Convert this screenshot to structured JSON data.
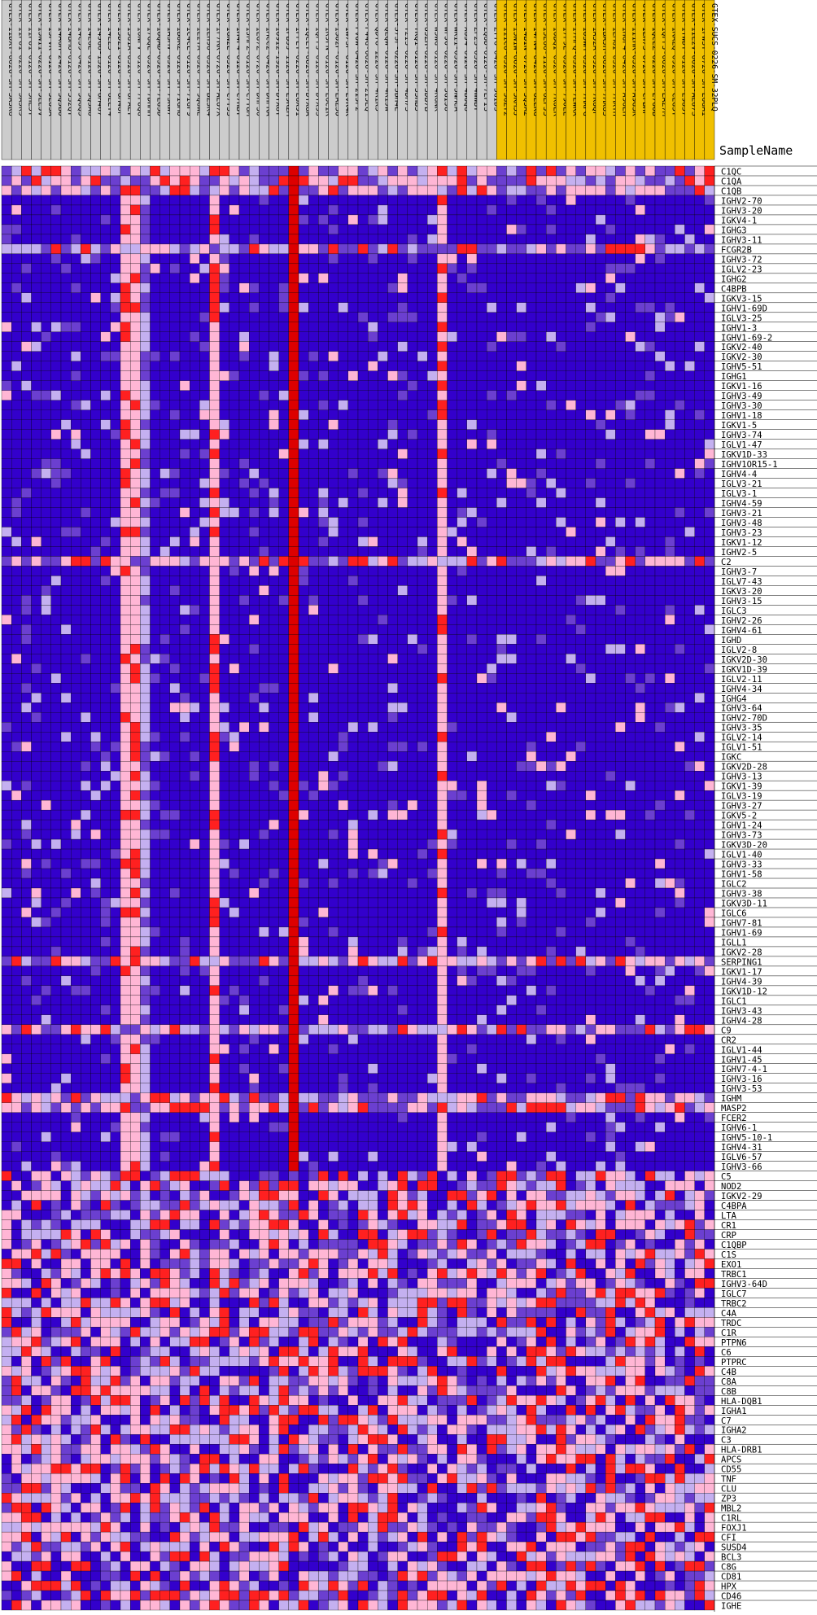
{
  "chart_data": {
    "type": "heatmap",
    "column_header_label": "SampleName",
    "colors": {
      "low": "#3300cc",
      "mid": "#6b3fd0",
      "light": "#c4b0f0",
      "pink": "#ffb6d5",
      "high": "#ff2020",
      "max": "#dd0000",
      "header_gray": "#cccccc",
      "header_gold": "#f0c000",
      "grid": "#000000"
    },
    "samples": [
      {
        "name": "GTEX-11DXY-0626-SM-5A5K6",
        "group": "gray"
      },
      {
        "name": "GTEX-11P81-0226-SM-5A5K9",
        "group": "gray"
      },
      {
        "name": "GTEX-11P81-0126-SM-5HL5Y",
        "group": "gray"
      },
      {
        "name": "GTEX-13N11-0226-SM-5LEJV",
        "group": "gray"
      },
      {
        "name": "GTEX-13PVR-0126-SM-5LU3A",
        "group": "gray"
      },
      {
        "name": "GTEX-14A6H-2426-SM-5Q5BO",
        "group": "gray"
      },
      {
        "name": "GTEX-14BMU-0126-SM-5S2QT",
        "group": "gray"
      },
      {
        "name": "GTEX-14C39-0426-SM-5QGQ3",
        "group": "gray"
      },
      {
        "name": "GTEX-14E6E-0126-SM-5Q5AO",
        "group": "gray"
      },
      {
        "name": "GTEX-14JG6-1326-SM-6M467",
        "group": "gray"
      },
      {
        "name": "GTEX-14LZ3-0126-SM-6LLT4",
        "group": "gray"
      },
      {
        "name": "GTEX-15DZ1-0126-SM-6M46F",
        "group": "gray"
      },
      {
        "name": "GTEX-15G1A-0326-SM-6PALY",
        "group": "gray"
      },
      {
        "name": "GTEX-16NPV-0126-SM-7P8QG",
        "group": "gray"
      },
      {
        "name": "GTEX-17GQL-0326-SM-7DHMH",
        "group": "gray"
      },
      {
        "name": "GTEX-18QAD-0326-SM-7LG5D",
        "group": "gray"
      },
      {
        "name": "GTEX-1A3MV-0326-SM-73KW7",
        "group": "gray"
      },
      {
        "name": "GTEX-1B8KZ-0126-SM-7IGM8",
        "group": "gray"
      },
      {
        "name": "GTEX-1C4CL-0126-SM-7IGP9",
        "group": "gray"
      },
      {
        "name": "GTEX-1E2YA-0326-SM-9QGWE",
        "group": "gray"
      },
      {
        "name": "GTEX-1EH9U-0326-SM-BZ3K4",
        "group": "gray"
      },
      {
        "name": "GTEX-1F7RK-0726-SM-AEU7X",
        "group": "gray"
      },
      {
        "name": "GTEX-1GN2E-0326-SM-C7Y3S",
        "group": "gray"
      },
      {
        "name": "GTEX-1H4P4-0126-SM-C7HBY",
        "group": "gray"
      },
      {
        "name": "GTEX-1JMPZ-0126-SM-C7Y8M",
        "group": "gray"
      },
      {
        "name": "GTEX-1LG7Z-0726-SM-DHF30",
        "group": "gray"
      },
      {
        "name": "GTEX-1MCC2-0426-SM-DHFRA",
        "group": "gray"
      },
      {
        "name": "GTEX-1O9I2-1926-SM-DTX8T",
        "group": "gray"
      },
      {
        "name": "GTEX-1PBJJ-1126-SM-E9R2M",
        "group": "gray"
      },
      {
        "name": "GTEX-1PFEY-0226-SM-E6X91",
        "group": "gray"
      },
      {
        "name": "GTEX-1QCLY-0826-SM-DTX8A",
        "group": "gray"
      },
      {
        "name": "GTEX-1QPFJ-0126-SM-DTX9S",
        "group": "gray"
      },
      {
        "name": "GTEX-1R9PN-0126-SM-E6CIR",
        "group": "gray"
      },
      {
        "name": "GTEX-1S82P-0126-SM-EAZ3U",
        "group": "gray"
      },
      {
        "name": "GTEX-1W7SF-0126-SM-EVR4K",
        "group": "gray"
      },
      {
        "name": "GTEX-PVOW-0426-SM-2I5F2",
        "group": "gray"
      },
      {
        "name": "GTEX-P44G-0626-SM-2I5EQ",
        "group": "gray"
      },
      {
        "name": "GTEX-QDT8-1226-SM-4R1K5",
        "group": "gray"
      },
      {
        "name": "GTEX-QLQW-0126-SM-4R1JW",
        "group": "gray"
      },
      {
        "name": "GTEX-S7SF-0226-SM-3BH4E",
        "group": "gray"
      },
      {
        "name": "GTEX-T2IS-0226-SM-4DM7S",
        "group": "gray"
      },
      {
        "name": "GTEX-TKQ1-0126-SM-33HB3",
        "group": "gray"
      },
      {
        "name": "GTEX-U3ZH-0226-SM-3DB7B",
        "group": "gray"
      },
      {
        "name": "GTEX-W5WG-0126-SM-4RGNK",
        "group": "gray"
      },
      {
        "name": "GTEX-WFJO-0226-SM-3GIJ8",
        "group": "gray"
      },
      {
        "name": "GTEX-WK11-0326-SM-3NMCA",
        "group": "gray"
      },
      {
        "name": "GTEX-XUJ4-0126-SM-4BOQ6",
        "group": "gray"
      },
      {
        "name": "GTEX-ZF2S-0326-SM-4WWBY",
        "group": "gray"
      },
      {
        "name": "GTEX-ZQUD-0126-SM-7EPIS",
        "group": "gray"
      },
      {
        "name": "GTEX-ZYT6-0426-SM-5GID3",
        "group": "gray"
      },
      {
        "name": "GTEX-111CU-0326-SM-5GZY2",
        "group": "gold"
      },
      {
        "name": "GTEX-13N1W-0826-SM-5KM5J",
        "group": "gold"
      },
      {
        "name": "GTEX-14BIN-0726-SM-5Q5A2",
        "group": "gold"
      },
      {
        "name": "GTEX-14PN4-0426-SM-6LLKG",
        "group": "gold"
      },
      {
        "name": "GTEX-15EU6-1126-SM-6LPJ3",
        "group": "gold"
      },
      {
        "name": "GTEX-16BQI-0326-SM-7KUER",
        "group": "gold"
      },
      {
        "name": "GTEX-17F9E-0526-SM-79OLE",
        "group": "gold"
      },
      {
        "name": "GTEX-17MFQ-0326-SM-7EWKX",
        "group": "gold"
      },
      {
        "name": "GTEX-183WM-0326-SM-7MXPG",
        "group": "gold"
      },
      {
        "name": "GTEX-1A32A-0926-SM-7KUQF",
        "group": "gold"
      },
      {
        "name": "GTEX-1BAJH-0626-SM-7MXU3",
        "group": "gold"
      },
      {
        "name": "GTEX-1EMGI-0326-SM-7MXTH",
        "group": "gold"
      },
      {
        "name": "GTEX-1HGF4-0426-SM-A96EH",
        "group": "gold"
      },
      {
        "name": "GTEX-1I1HK-0326-SM-A9G3K",
        "group": "gold"
      },
      {
        "name": "GTEX-1LH75-0726-SM-CFBHF",
        "group": "gold"
      },
      {
        "name": "GTEX-1QCLZ-0226-SM-E76OB",
        "group": "gold"
      },
      {
        "name": "GTEX-1QPFJ-0626-SM-EAZ7M",
        "group": "gold"
      },
      {
        "name": "GTEX-1RAZQ-0926-SM-CEG5T",
        "group": "gold"
      },
      {
        "name": "GTEX-1TWDT-0126-SM-E9U57",
        "group": "gold"
      },
      {
        "name": "GTEX-1IL2V-0626-SM-AEU7S",
        "group": "gold"
      },
      {
        "name": "GTEX-1PWST-0726-SM-E6GA1",
        "group": "gold"
      },
      {
        "name": "GTEX-SUCS-0226-SM-32PLQ",
        "group": "gold"
      }
    ],
    "genes": [
      "C1QC",
      "C1QA",
      "C1QB",
      "IGHV2-70",
      "IGHV3-20",
      "IGKV4-1",
      "IGHG3",
      "IGHV3-11",
      "FCGR2B",
      "IGHV3-72",
      "IGLV2-23",
      "IGHG2",
      "C4BPB",
      "IGKV3-15",
      "IGHV1-69D",
      "IGLV3-25",
      "IGHV1-3",
      "IGHV1-69-2",
      "IGKV2-40",
      "IGKV2-30",
      "IGHV5-51",
      "IGHG1",
      "IGKV1-16",
      "IGHV3-49",
      "IGHV3-30",
      "IGHV1-18",
      "IGKV1-5",
      "IGHV3-74",
      "IGLV1-47",
      "IGKV1D-33",
      "IGHV1OR15-1",
      "IGHV4-4",
      "IGLV3-21",
      "IGLV3-1",
      "IGHV4-59",
      "IGHV3-21",
      "IGHV3-48",
      "IGHV3-23",
      "IGKV1-12",
      "IGHV2-5",
      "C2",
      "IGHV3-7",
      "IGLV7-43",
      "IGKV3-20",
      "IGHV3-15",
      "IGLC3",
      "IGHV2-26",
      "IGHV4-61",
      "IGHD",
      "IGLV2-8",
      "IGKV2D-30",
      "IGKV1D-39",
      "IGLV2-11",
      "IGHV4-34",
      "IGHG4",
      "IGHV3-64",
      "IGHV2-70D",
      "IGHV3-35",
      "IGLV2-14",
      "IGLV1-51",
      "IGKC",
      "IGKV2D-28",
      "IGHV3-13",
      "IGKV1-39",
      "IGLV3-19",
      "IGHV3-27",
      "IGKV5-2",
      "IGHV1-24",
      "IGHV3-73",
      "IGKV3D-20",
      "IGLV1-40",
      "IGHV3-33",
      "IGHV1-58",
      "IGLC2",
      "IGHV3-38",
      "IGKV3D-11",
      "IGLC6",
      "IGHV7-81",
      "IGHV1-69",
      "IGLL1",
      "IGKV2-28",
      "SERPING1",
      "IGKV1-17",
      "IGHV4-39",
      "IGKV1D-12",
      "IGLC1",
      "IGHV3-43",
      "IGHV4-28",
      "C9",
      "CR2",
      "IGLV1-44",
      "IGHV1-45",
      "IGHV7-4-1",
      "IGHV3-16",
      "IGHV3-53",
      "IGHM",
      "MASP2",
      "FCER2",
      "IGHV6-1",
      "IGHV5-10-1",
      "IGHV4-31",
      "IGLV6-57",
      "IGHV3-66",
      "C5",
      "NOD2",
      "IGKV2-29",
      "C4BPA",
      "LTA",
      "CR1",
      "CRP",
      "C1QBP",
      "C1S",
      "EXO1",
      "TRBC1",
      "IGHV3-64D",
      "IGLC7",
      "TRBC2",
      "C4A",
      "TRDC",
      "C1R",
      "PTPN6",
      "C6",
      "PTPRC",
      "C4B",
      "C8A",
      "C8B",
      "HLA-DQB1",
      "IGHA1",
      "C7",
      "IGHA2",
      "C3",
      "HLA-DRB1",
      "APCS",
      "CD55",
      "TNF",
      "CLU",
      "ZP3",
      "MBL2",
      "C1RL",
      "FOXJ1",
      "CFI",
      "SUSD4",
      "BCL3",
      "C8G",
      "CD81",
      "HPX",
      "CD46",
      "IGHE"
    ]
  }
}
